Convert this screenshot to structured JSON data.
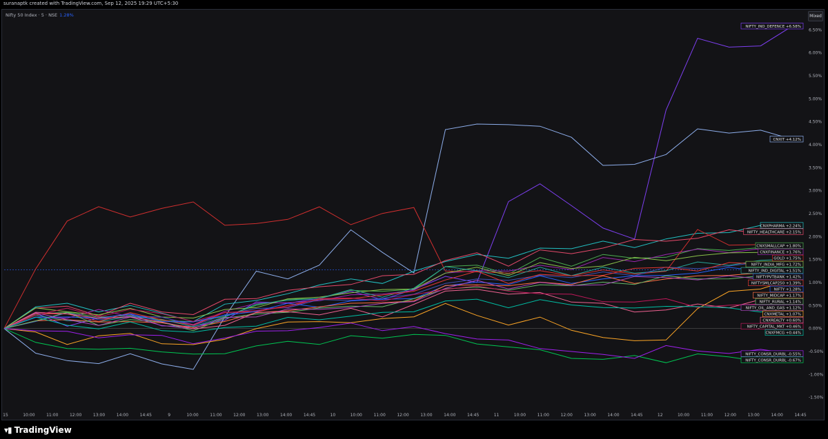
{
  "header": {
    "credit": "suranaptk created with TradingView.com, Sep 12, 2025 19:29 UTC+5:30"
  },
  "legend": {
    "symbol": "Nifty 50 Index · 5 · NSE",
    "change": "1.28%"
  },
  "mixed_button": "Mixed",
  "footer": {
    "brand": "TradingView",
    "logo_icon": "tradingview-logo-icon"
  },
  "chart_data": {
    "type": "line",
    "x_ticks": [
      "15",
      "10:00",
      "11:00",
      "12:00",
      "13:00",
      "14:00",
      "14:45",
      "9",
      "10:00",
      "11:00",
      "12:00",
      "13:00",
      "14:00",
      "14:45",
      "10",
      "10:00",
      "11:00",
      "12:00",
      "13:00",
      "14:00",
      "14:45",
      "11",
      "10:00",
      "11:00",
      "12:00",
      "13:00",
      "14:00",
      "14:45",
      "12",
      "10:00",
      "11:00",
      "12:00",
      "13:00",
      "14:00",
      "14:45"
    ],
    "y_ticks": [
      "6.50%",
      "6.00%",
      "5.50%",
      "5.00%",
      "4.50%",
      "4.00%",
      "3.50%",
      "3.00%",
      "2.50%",
      "2.00%",
      "1.50%",
      "1.00%",
      "0.50%",
      "0.00%",
      "-0.50%",
      "-1.00%",
      "-1.50%"
    ],
    "ylim": [
      -1.7,
      6.7
    ],
    "series": [
      {
        "name": "NIFTY_IND_DEFENCE",
        "label": "+6.58%",
        "color": "#7e3ff2",
        "values": [
          0,
          0.3,
          0.1,
          0.2,
          0.3,
          0.1,
          0.0,
          0.2,
          0.6,
          0.5,
          0.7,
          0.8,
          0.6,
          0.9,
          1.1,
          1.0,
          2.8,
          3.1,
          2.7,
          2.2,
          1.9,
          4.8,
          6.3,
          6.1,
          6.2,
          6.58
        ]
      },
      {
        "name": "CNXIT",
        "label": "+4.12%",
        "color": "#8fb0ee",
        "values": [
          0,
          -0.5,
          -0.7,
          -0.8,
          -0.5,
          -0.8,
          -0.9,
          0.3,
          1.2,
          1.1,
          1.4,
          2.1,
          1.7,
          1.2,
          4.3,
          4.5,
          4.4,
          4.4,
          4.2,
          3.5,
          3.6,
          3.8,
          4.3,
          4.3,
          4.3,
          4.12
        ]
      },
      {
        "name": "CNXPHARMA",
        "label": "+2.24%",
        "color": "#22c1c3",
        "values": [
          0,
          0.5,
          0.5,
          0.4,
          0.5,
          0.3,
          0.2,
          0.5,
          0.6,
          0.8,
          0.9,
          1.1,
          1.0,
          1.2,
          1.5,
          1.6,
          1.5,
          1.8,
          1.7,
          1.9,
          1.8,
          1.9,
          2.1,
          2.1,
          2.2,
          2.24
        ]
      },
      {
        "name": "NIFTY_HEALTHCARE",
        "label": "+2.15%",
        "color": "#e84a6b",
        "values": [
          0,
          0.4,
          0.5,
          0.3,
          0.5,
          0.4,
          0.3,
          0.6,
          0.7,
          0.8,
          0.9,
          1.0,
          1.1,
          1.2,
          1.5,
          1.6,
          1.4,
          1.7,
          1.6,
          1.8,
          1.9,
          1.9,
          2.0,
          2.1,
          2.1,
          2.15
        ]
      },
      {
        "name": "CNXSMALLCAP",
        "label": "+1.80%",
        "color": "#4caf50",
        "values": [
          0,
          0.3,
          0.4,
          0.2,
          0.3,
          0.2,
          0.1,
          0.3,
          0.5,
          0.6,
          0.7,
          0.8,
          0.8,
          0.9,
          1.3,
          1.4,
          1.2,
          1.5,
          1.4,
          1.6,
          1.5,
          1.6,
          1.7,
          1.7,
          1.8,
          1.8
        ]
      },
      {
        "name": "CNXFINANCE",
        "label": "+1.76%",
        "color": "#9c27b0",
        "values": [
          0,
          0.3,
          0.2,
          0.4,
          0.3,
          0.2,
          0.1,
          0.4,
          0.5,
          0.6,
          0.6,
          0.7,
          0.8,
          0.8,
          1.2,
          1.3,
          1.2,
          1.4,
          1.3,
          1.5,
          1.5,
          1.6,
          1.7,
          1.7,
          1.7,
          1.76
        ]
      },
      {
        "name": "GOLD",
        "label": "+1.75%",
        "color": "#d32f2f",
        "values": [
          0,
          1.3,
          2.3,
          2.7,
          2.4,
          2.6,
          2.8,
          2.2,
          2.3,
          2.4,
          2.6,
          2.3,
          2.5,
          2.6,
          1.3,
          1.2,
          1.2,
          1.3,
          1.1,
          1.3,
          1.2,
          1.2,
          2.2,
          1.8,
          1.8,
          1.75
        ]
      },
      {
        "name": "NIFTY_INDIA_MFG",
        "label": "+1.72%",
        "color": "#8bc34a",
        "values": [
          0,
          0.4,
          0.4,
          0.3,
          0.4,
          0.3,
          0.2,
          0.4,
          0.5,
          0.6,
          0.7,
          0.8,
          0.8,
          0.9,
          1.2,
          1.3,
          1.2,
          1.4,
          1.3,
          1.4,
          1.5,
          1.5,
          1.6,
          1.6,
          1.7,
          1.72
        ]
      },
      {
        "name": "NIFTY_IND_DIGITAL",
        "label": "+1.51%",
        "color": "#26a69a",
        "values": [
          0,
          0.3,
          0.2,
          0.1,
          0.3,
          0.2,
          0.0,
          0.3,
          0.5,
          0.6,
          0.7,
          0.8,
          0.7,
          0.9,
          1.3,
          1.3,
          1.1,
          1.3,
          1.2,
          1.3,
          1.2,
          1.3,
          1.4,
          1.4,
          1.5,
          1.51
        ]
      },
      {
        "name": "NIFTYPVTBANK",
        "label": "+1.42%",
        "color": "#3f51b5",
        "values": [
          0,
          0.2,
          0.3,
          0.2,
          0.3,
          0.2,
          0.1,
          0.3,
          0.4,
          0.5,
          0.6,
          0.6,
          0.7,
          0.7,
          1.0,
          1.1,
          1.0,
          1.2,
          1.1,
          1.2,
          1.2,
          1.3,
          1.3,
          1.4,
          1.4,
          1.42
        ]
      },
      {
        "name": "NIFTYSMLCAP250",
        "label": "+1.39%",
        "color": "#e53935",
        "values": [
          0,
          0.3,
          0.3,
          0.2,
          0.3,
          0.2,
          0.1,
          0.3,
          0.4,
          0.5,
          0.6,
          0.7,
          0.7,
          0.8,
          1.1,
          1.2,
          1.0,
          1.2,
          1.1,
          1.2,
          1.3,
          1.3,
          1.3,
          1.4,
          1.4,
          1.39
        ]
      },
      {
        "name": "NIFTY",
        "label": "+1.28%",
        "color": "#2962ff",
        "values": [
          0,
          0.2,
          0.3,
          0.2,
          0.3,
          0.2,
          0.1,
          0.3,
          0.4,
          0.5,
          0.5,
          0.6,
          0.6,
          0.7,
          0.9,
          1.0,
          1.0,
          1.1,
          1.0,
          1.1,
          1.1,
          1.2,
          1.2,
          1.3,
          1.3,
          1.28
        ]
      },
      {
        "name": "NIFTY_MIDCAP",
        "label": "+1.17%",
        "color": "#ff7043",
        "values": [
          0,
          0.2,
          0.2,
          0.1,
          0.2,
          0.1,
          0.0,
          0.2,
          0.3,
          0.4,
          0.5,
          0.5,
          0.6,
          0.6,
          0.9,
          1.0,
          0.9,
          1.0,
          1.0,
          1.1,
          1.0,
          1.1,
          1.1,
          1.2,
          1.2,
          1.17
        ]
      },
      {
        "name": "NIFTY_RURAL",
        "label": "+1.14%",
        "color": "#66bb6a",
        "values": [
          0,
          0.2,
          0.3,
          0.1,
          0.2,
          0.1,
          0.0,
          0.2,
          0.3,
          0.4,
          0.4,
          0.5,
          0.5,
          0.6,
          0.9,
          0.9,
          0.8,
          1.0,
          0.9,
          1.0,
          1.0,
          1.1,
          1.1,
          1.1,
          1.1,
          1.14
        ]
      },
      {
        "name": "NIFTY_OIL_AND_GAS",
        "label": "+1.12%",
        "color": "#ab47bc",
        "values": [
          0,
          0.3,
          0.2,
          0.1,
          0.2,
          0.1,
          0.0,
          0.2,
          0.3,
          0.4,
          0.4,
          0.5,
          0.5,
          0.6,
          0.9,
          1.0,
          0.9,
          1.0,
          0.9,
          1.0,
          1.1,
          1.1,
          1.1,
          1.1,
          1.1,
          1.12
        ]
      },
      {
        "name": "CNXMETAL",
        "label": "+1.07%",
        "color": "#ffa726",
        "values": [
          0,
          -0.1,
          -0.3,
          -0.2,
          -0.1,
          -0.3,
          -0.4,
          -0.2,
          0.0,
          0.1,
          0.2,
          0.1,
          0.2,
          0.3,
          0.5,
          0.3,
          0.1,
          0.2,
          0.0,
          -0.2,
          -0.3,
          -0.2,
          0.4,
          0.8,
          0.9,
          1.07
        ]
      },
      {
        "name": "CNXREALTY",
        "label": "+0.60%",
        "color": "#f06292",
        "values": [
          0,
          0.4,
          0.3,
          0.2,
          0.3,
          0.1,
          0.0,
          0.1,
          0.3,
          0.4,
          0.3,
          0.4,
          0.3,
          0.5,
          0.8,
          0.9,
          0.7,
          0.8,
          0.6,
          0.5,
          0.4,
          0.4,
          0.5,
          0.5,
          0.6,
          0.6
        ]
      },
      {
        "name": "NIFTY_CAPITAL_MKT",
        "label": "+0.46%",
        "color": "#c2185b",
        "values": [
          0,
          0.3,
          0.4,
          0.3,
          0.4,
          0.3,
          0.2,
          0.3,
          0.4,
          0.5,
          0.6,
          0.7,
          0.6,
          0.7,
          0.9,
          0.9,
          0.8,
          0.8,
          0.7,
          0.6,
          0.6,
          0.6,
          0.5,
          0.5,
          0.5,
          0.46
        ]
      },
      {
        "name": "CNXFMCG",
        "label": "+0.44%",
        "color": "#00bfa5",
        "values": [
          0,
          0.2,
          0.1,
          0.0,
          0.1,
          0.0,
          -0.1,
          0.0,
          0.1,
          0.2,
          0.2,
          0.3,
          0.3,
          0.4,
          0.6,
          0.6,
          0.5,
          0.6,
          0.5,
          0.5,
          0.4,
          0.5,
          0.5,
          0.4,
          0.4,
          0.44
        ]
      },
      {
        "name": "NIFTY_CONSR_DURBL",
        "label": "-0.67%",
        "color": "#00c853",
        "values": [
          0,
          -0.3,
          -0.4,
          -0.5,
          -0.4,
          -0.5,
          -0.6,
          -0.5,
          -0.4,
          -0.3,
          -0.3,
          -0.2,
          -0.2,
          -0.1,
          -0.2,
          -0.3,
          -0.4,
          -0.5,
          -0.6,
          -0.7,
          -0.6,
          -0.7,
          -0.6,
          -0.6,
          -0.7,
          -0.67
        ]
      },
      {
        "name": "NIFTY_CONSR_DURBL_2",
        "label": "-0.55%",
        "color": "#a020f0",
        "values": [
          0,
          0.0,
          -0.1,
          -0.2,
          -0.1,
          -0.2,
          -0.3,
          -0.2,
          -0.1,
          0.0,
          0.0,
          0.1,
          0.0,
          0.0,
          -0.1,
          -0.2,
          -0.3,
          -0.4,
          -0.5,
          -0.6,
          -0.6,
          -0.4,
          -0.5,
          -0.5,
          -0.5,
          -0.55
        ]
      }
    ]
  }
}
